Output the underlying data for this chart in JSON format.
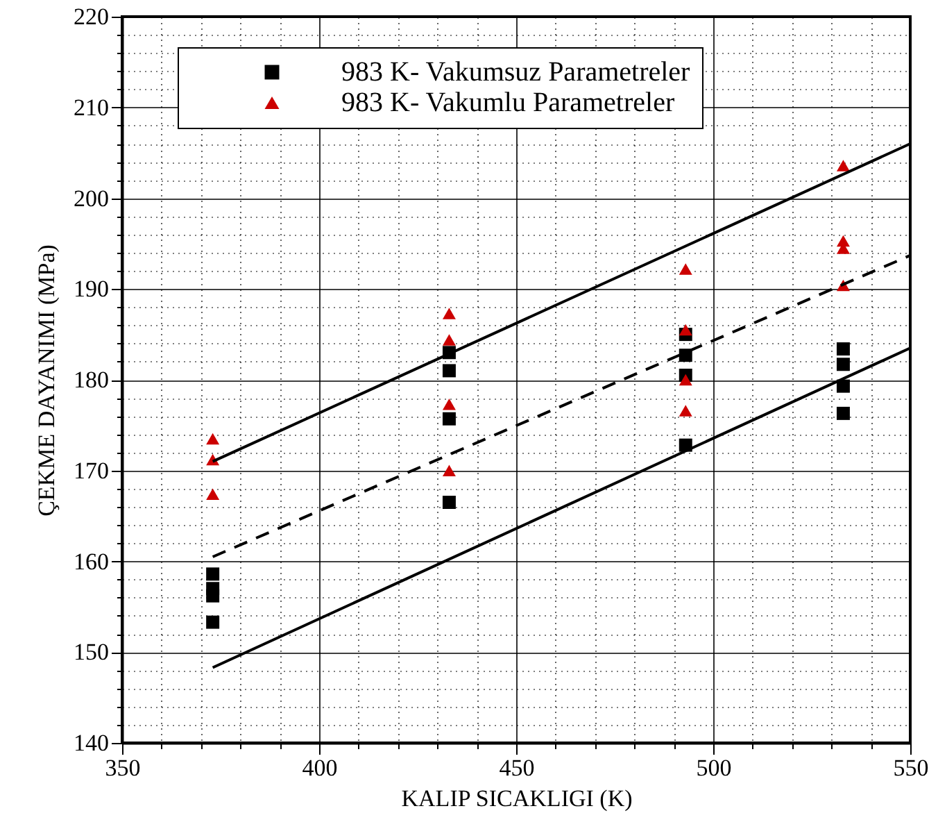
{
  "chart_data": {
    "type": "scatter",
    "xlabel": "KALIP SICAKLIGI (K)",
    "ylabel": "ÇEKME DAYANIMI (MPa)",
    "xlim": [
      350,
      550
    ],
    "ylim": [
      140,
      220
    ],
    "xticks": [
      350,
      {
        "value": 360,
        "label": null
      },
      {
        "value": 370,
        "label": null
      },
      {
        "value": 380,
        "label": null
      },
      {
        "value": 390,
        "label": null
      },
      400,
      {
        "value": 410,
        "label": null
      },
      {
        "value": 420,
        "label": null
      },
      {
        "value": 430,
        "label": null
      },
      {
        "value": 440,
        "label": null
      },
      450,
      {
        "value": 460,
        "label": null
      },
      {
        "value": 470,
        "label": null
      },
      {
        "value": 480,
        "label": null
      },
      {
        "value": 490,
        "label": null
      },
      500,
      {
        "value": 510,
        "label": null
      },
      {
        "value": 520,
        "label": null
      },
      {
        "value": 530,
        "label": null
      },
      {
        "value": 540,
        "label": null
      },
      550
    ],
    "yticks": [
      140,
      {
        "value": 142,
        "label": null
      },
      {
        "value": 144,
        "label": null
      },
      {
        "value": 146,
        "label": null
      },
      {
        "value": 148,
        "label": null
      },
      150,
      {
        "value": 152,
        "label": null
      },
      {
        "value": 154,
        "label": null
      },
      {
        "value": 156,
        "label": null
      },
      {
        "value": 158,
        "label": null
      },
      160,
      {
        "value": 162,
        "label": null
      },
      {
        "value": 164,
        "label": null
      },
      {
        "value": 166,
        "label": null
      },
      {
        "value": 168,
        "label": null
      },
      170,
      {
        "value": 172,
        "label": null
      },
      {
        "value": 174,
        "label": null
      },
      {
        "value": 176,
        "label": null
      },
      {
        "value": 178,
        "label": null
      },
      180,
      {
        "value": 182,
        "label": null
      },
      {
        "value": 184,
        "label": null
      },
      {
        "value": 186,
        "label": null
      },
      {
        "value": 188,
        "label": null
      },
      190,
      {
        "value": 192,
        "label": null
      },
      {
        "value": 194,
        "label": null
      },
      {
        "value": 196,
        "label": null
      },
      {
        "value": 198,
        "label": null
      },
      200,
      {
        "value": 202,
        "label": null
      },
      {
        "value": 204,
        "label": null
      },
      {
        "value": 206,
        "label": null
      },
      {
        "value": 208,
        "label": null
      },
      210,
      {
        "value": 212,
        "label": null
      },
      {
        "value": 214,
        "label": null
      },
      {
        "value": 216,
        "label": null
      },
      {
        "value": 218,
        "label": null
      },
      220
    ],
    "grid": true,
    "legend": "top left",
    "series": [
      {
        "name": "983 K- Vakumsuz Parametreler",
        "color": "#000000",
        "marker": "square",
        "x": [
          373,
          373,
          373,
          373,
          433,
          433,
          433,
          433,
          493,
          493,
          493,
          493,
          533,
          533,
          533,
          533
        ],
        "values": [
          158.6,
          157.0,
          156.2,
          153.3,
          183.0,
          181.0,
          175.7,
          166.5,
          185.0,
          182.7,
          180.5,
          172.8,
          183.4,
          181.7,
          179.3,
          176.3
        ]
      },
      {
        "name": "983 K- Vakumlu Parametreler",
        "color": "#cc0000",
        "marker": "triangle",
        "x": [
          373,
          373,
          373,
          433,
          433,
          433,
          433,
          493,
          493,
          493,
          493,
          533,
          533,
          533,
          533
        ],
        "values": [
          173.5,
          171.2,
          167.4,
          187.3,
          184.4,
          177.3,
          170.0,
          192.2,
          185.5,
          180.0,
          176.6,
          203.6,
          195.3,
          194.5,
          190.4
        ]
      },
      {
        "type": "line",
        "color": "#000000",
        "line_style": "solid",
        "x": [
          373,
          550
        ],
        "values": [
          171.0,
          206.0
        ]
      },
      {
        "type": "line",
        "color": "#000000",
        "line_style": "dashed",
        "x": [
          373,
          550
        ],
        "values": [
          160.5,
          193.7
        ]
      },
      {
        "type": "line",
        "color": "#000000",
        "line_style": "solid",
        "x": [
          373,
          550
        ],
        "values": [
          148.3,
          183.5
        ]
      }
    ]
  }
}
